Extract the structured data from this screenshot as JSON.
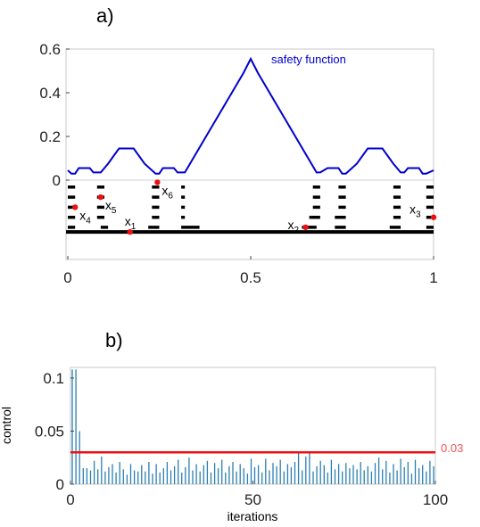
{
  "chart_data": [
    {
      "type": "line",
      "panel_label": "a)",
      "xlim": [
        0,
        1
      ],
      "ylim": [
        -0.24,
        0.6
      ],
      "x_ticks": [
        "0",
        "0.5",
        "1"
      ],
      "y_ticks": [
        "0",
        "0.2",
        "0.4",
        "0.6"
      ],
      "series_label": "safety function",
      "series_color": "#0000cc",
      "safety_function": {
        "x": [
          0.0,
          0.01,
          0.02,
          0.03,
          0.06,
          0.07,
          0.09,
          0.11,
          0.14,
          0.18,
          0.21,
          0.24,
          0.25,
          0.26,
          0.29,
          0.3,
          0.32,
          0.48,
          0.5,
          0.52,
          0.68,
          0.69,
          0.71,
          0.74,
          0.75,
          0.76,
          0.79,
          0.82,
          0.86,
          0.89,
          0.91,
          0.92,
          0.93,
          0.96,
          0.97,
          0.98,
          1.0
        ],
        "y": [
          0.045,
          0.03,
          0.03,
          0.055,
          0.055,
          0.035,
          0.035,
          0.075,
          0.145,
          0.145,
          0.075,
          0.03,
          0.03,
          0.055,
          0.055,
          0.035,
          0.035,
          0.49,
          0.555,
          0.49,
          0.035,
          0.035,
          0.055,
          0.055,
          0.03,
          0.03,
          0.075,
          0.145,
          0.145,
          0.075,
          0.035,
          0.035,
          0.055,
          0.055,
          0.03,
          0.03,
          0.045
        ]
      },
      "dash_rows_y": [
        -0.032,
        -0.078,
        -0.124,
        -0.17,
        -0.216
      ],
      "dash_segments": [
        {
          "x1": 0.0,
          "x2": 0.02,
          "rows": [
            0,
            1,
            2,
            3,
            4
          ]
        },
        {
          "x1": 0.08,
          "x2": 0.1,
          "rows": [
            0,
            1,
            2,
            3
          ]
        },
        {
          "x1": 0.09,
          "x2": 0.11,
          "rows": [
            4
          ]
        },
        {
          "x1": 0.23,
          "x2": 0.25,
          "rows": [
            0,
            1,
            2,
            3
          ]
        },
        {
          "x1": 0.22,
          "x2": 0.25,
          "rows": [
            4
          ]
        },
        {
          "x1": 0.31,
          "x2": 0.32,
          "rows": [
            0,
            1,
            2,
            3
          ]
        },
        {
          "x1": 0.31,
          "x2": 0.36,
          "rows": [
            4
          ]
        },
        {
          "x1": 0.67,
          "x2": 0.69,
          "rows": [
            0,
            1,
            2
          ]
        },
        {
          "x1": 0.66,
          "x2": 0.69,
          "rows": [
            3
          ]
        },
        {
          "x1": 0.64,
          "x2": 0.68,
          "rows": [
            4
          ]
        },
        {
          "x1": 0.74,
          "x2": 0.76,
          "rows": [
            0,
            1,
            2
          ]
        },
        {
          "x1": 0.73,
          "x2": 0.76,
          "rows": [
            3,
            4
          ]
        },
        {
          "x1": 0.89,
          "x2": 0.91,
          "rows": [
            0,
            1,
            2,
            3
          ]
        },
        {
          "x1": 0.88,
          "x2": 0.91,
          "rows": [
            4
          ]
        },
        {
          "x1": 0.98,
          "x2": 1.0,
          "rows": [
            0,
            1,
            2,
            3,
            4
          ]
        }
      ],
      "baseline_y": -0.237,
      "points": [
        {
          "name": "x",
          "sub": "1",
          "x": 0.17,
          "y": -0.237,
          "label_side": "above"
        },
        {
          "name": "x",
          "sub": "2",
          "x": 0.65,
          "y": -0.216,
          "label_side": "left"
        },
        {
          "name": "x",
          "sub": "3",
          "x": 1.0,
          "y": -0.17,
          "label_side": "left-above"
        },
        {
          "name": "x",
          "sub": "4",
          "x": 0.02,
          "y": -0.124,
          "label_side": "right-below"
        },
        {
          "name": "x",
          "sub": "5",
          "x": 0.09,
          "y": -0.078,
          "label_side": "right-below"
        },
        {
          "name": "x",
          "sub": "6",
          "x": 0.245,
          "y": -0.01,
          "label_side": "right-below"
        }
      ],
      "point_color": "#ee1111"
    },
    {
      "type": "bar",
      "panel_label": "b)",
      "xlabel": "iterations",
      "ylabel": "control",
      "xlim": [
        0,
        100
      ],
      "ylim": [
        0,
        0.11
      ],
      "x_ticks": [
        "0",
        "50",
        "100"
      ],
      "y_ticks": [
        "0",
        "0.05",
        "0.1"
      ],
      "threshold": 0.03,
      "threshold_label": "0.03",
      "threshold_color": "#ee1111",
      "bar_color": "#2a7fb0",
      "values": [
        0.108,
        0.108,
        0.05,
        0.015,
        0.015,
        0.013,
        0.022,
        0.014,
        0.026,
        0.012,
        0.016,
        0.019,
        0.011,
        0.021,
        0.014,
        0.009,
        0.019,
        0.013,
        0.012,
        0.018,
        0.012,
        0.021,
        0.01,
        0.019,
        0.011,
        0.015,
        0.021,
        0.013,
        0.017,
        0.023,
        0.011,
        0.016,
        0.025,
        0.013,
        0.019,
        0.012,
        0.018,
        0.022,
        0.011,
        0.02,
        0.015,
        0.023,
        0.011,
        0.017,
        0.021,
        0.012,
        0.019,
        0.015,
        0.01,
        0.024,
        0.016,
        0.018,
        0.011,
        0.024,
        0.013,
        0.02,
        0.017,
        0.023,
        0.012,
        0.019,
        0.016,
        0.021,
        0.029,
        0.013,
        0.026,
        0.029,
        0.012,
        0.017,
        0.022,
        0.018,
        0.011,
        0.023,
        0.014,
        0.019,
        0.012,
        0.02,
        0.015,
        0.018,
        0.014,
        0.021,
        0.013,
        0.017,
        0.012,
        0.02,
        0.025,
        0.014,
        0.022,
        0.011,
        0.019,
        0.013,
        0.024,
        0.016,
        0.021,
        0.01,
        0.023,
        0.015,
        0.018,
        0.012,
        0.022,
        0.017
      ]
    }
  ]
}
